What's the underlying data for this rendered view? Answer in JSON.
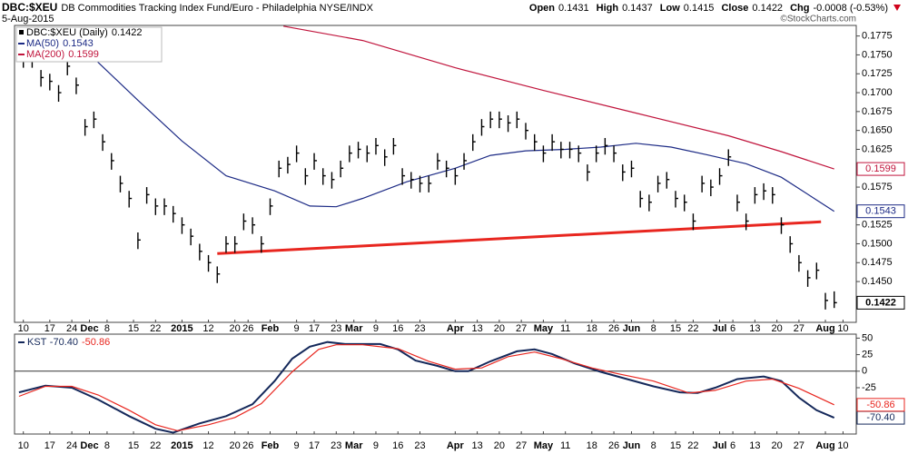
{
  "chart_data": {
    "type": "ohlc",
    "title": "DBC:$XEU",
    "subtitle": "DB Commodities Tracking Index Fund/Euro - Philadelphia NYSE/INDX",
    "date": "5-Aug-2015",
    "credit": "©StockCharts.com",
    "quote": [
      {
        "label": "Open",
        "value": 0.1431
      },
      {
        "label": "High",
        "value": 0.1437
      },
      {
        "label": "Low",
        "value": 0.1415
      },
      {
        "label": "Close",
        "value": 0.1422
      },
      {
        "label": "Chg",
        "value": -0.0008,
        "value_label": "-0.0008 (-0.53%)"
      }
    ],
    "quote_color": "#d0021b",
    "xlim": [
      -2,
      189
    ],
    "ylim": [
      0.1396,
      0.1789
    ],
    "yticks": [
      {
        "value": 0.145,
        "label": "0.1450"
      },
      0.1475,
      {
        "value": 0.15,
        "label": "0.1500"
      },
      0.1525,
      0.1575,
      0.1625,
      {
        "value": 0.165,
        "label": "0.1650"
      },
      0.1675,
      {
        "value": 0.17,
        "label": "0.1700"
      },
      0.1725,
      {
        "value": 0.175,
        "label": "0.1750"
      },
      0.1775
    ],
    "xticks": [
      {
        "value": 0,
        "label": "10"
      },
      {
        "value": 6,
        "label": "17"
      },
      {
        "value": 11,
        "label": "24"
      },
      {
        "value": 15,
        "label": "Dec"
      },
      {
        "value": 19,
        "label": "8"
      },
      {
        "value": 25,
        "label": "15"
      },
      {
        "value": 30,
        "label": "22"
      },
      {
        "value": 36,
        "label": "2015"
      },
      {
        "value": 42,
        "label": "12"
      },
      {
        "value": 48,
        "label": "20"
      },
      {
        "value": 51,
        "label": "26"
      },
      {
        "value": 56,
        "label": "Feb"
      },
      {
        "value": 62,
        "label": "9"
      },
      {
        "value": 66,
        "label": "17"
      },
      {
        "value": 71,
        "label": "23"
      },
      {
        "value": 75,
        "label": "Mar"
      },
      {
        "value": 80,
        "label": "9"
      },
      {
        "value": 85,
        "label": "16"
      },
      {
        "value": 90,
        "label": "23"
      },
      {
        "value": 98,
        "label": "Apr"
      },
      {
        "value": 103,
        "label": "13"
      },
      {
        "value": 108,
        "label": "20"
      },
      {
        "value": 113,
        "label": "27"
      },
      {
        "value": 118,
        "label": "May"
      },
      {
        "value": 123,
        "label": "11"
      },
      {
        "value": 129,
        "label": "18"
      },
      {
        "value": 134,
        "label": "26"
      },
      {
        "value": 138,
        "label": "Jun"
      },
      {
        "value": 143,
        "label": "8"
      },
      {
        "value": 148,
        "label": "15"
      },
      {
        "value": 152,
        "label": "22"
      },
      {
        "value": 158,
        "label": "Jul"
      },
      {
        "value": 161,
        "label": "6"
      },
      {
        "value": 166,
        "label": "13"
      },
      {
        "value": 171,
        "label": "20"
      },
      {
        "value": 176,
        "label": "27"
      },
      {
        "value": 182,
        "label": "Aug"
      },
      {
        "value": 186,
        "label": "10"
      }
    ],
    "price": {
      "name": "DBC:$XEU (Daily)",
      "color": "#000000",
      "x": [
        0,
        2,
        4,
        6,
        8,
        10,
        12,
        14,
        16,
        18,
        20,
        22,
        24,
        26,
        28,
        30,
        32,
        34,
        36,
        38,
        40,
        42,
        44,
        46,
        48,
        50,
        52,
        54,
        56,
        58,
        60,
        62,
        64,
        66,
        68,
        70,
        72,
        74,
        76,
        78,
        80,
        82,
        84,
        86,
        88,
        90,
        92,
        94,
        96,
        98,
        100,
        102,
        104,
        106,
        108,
        110,
        112,
        114,
        116,
        118,
        120,
        122,
        124,
        126,
        128,
        130,
        132,
        134,
        136,
        138,
        140,
        142,
        144,
        146,
        148,
        150,
        152,
        154,
        156,
        158,
        160,
        162,
        164,
        166,
        168,
        170,
        172,
        174,
        176,
        178,
        180,
        182,
        184
      ],
      "high": [
        0.1755,
        0.1755,
        0.173,
        0.1725,
        0.171,
        0.1745,
        0.172,
        0.1665,
        0.1675,
        0.1645,
        0.162,
        0.159,
        0.157,
        0.1515,
        0.1575,
        0.156,
        0.156,
        0.155,
        0.1535,
        0.152,
        0.15,
        0.1485,
        0.147,
        0.151,
        0.151,
        0.154,
        0.1535,
        0.151,
        0.156,
        0.161,
        0.1615,
        0.163,
        0.16,
        0.162,
        0.16,
        0.1595,
        0.161,
        0.163,
        0.1635,
        0.163,
        0.164,
        0.1625,
        0.164,
        0.16,
        0.1595,
        0.159,
        0.159,
        0.162,
        0.161,
        0.16,
        0.162,
        0.1645,
        0.1665,
        0.1675,
        0.1675,
        0.167,
        0.1675,
        0.166,
        0.1645,
        0.163,
        0.1645,
        0.1635,
        0.1635,
        0.163,
        0.1605,
        0.163,
        0.164,
        0.163,
        0.1605,
        0.161,
        0.157,
        0.1565,
        0.159,
        0.1595,
        0.157,
        0.1565,
        0.154,
        0.159,
        0.1585,
        0.16,
        0.1625,
        0.1565,
        0.154,
        0.1575,
        0.158,
        0.1575,
        0.1535,
        0.151,
        0.1485,
        0.1465,
        0.1475,
        0.1435,
        0.1437
      ],
      "low": [
        0.1733,
        0.1733,
        0.1708,
        0.1703,
        0.1688,
        0.1723,
        0.1698,
        0.1643,
        0.1653,
        0.1623,
        0.1598,
        0.1568,
        0.1548,
        0.1493,
        0.1553,
        0.1538,
        0.1538,
        0.1528,
        0.1513,
        0.1498,
        0.1478,
        0.1463,
        0.1448,
        0.1488,
        0.1488,
        0.1518,
        0.1513,
        0.1488,
        0.1538,
        0.1588,
        0.1593,
        0.1608,
        0.1578,
        0.1598,
        0.1578,
        0.1573,
        0.1588,
        0.1608,
        0.1613,
        0.1608,
        0.1618,
        0.1603,
        0.1618,
        0.1578,
        0.1573,
        0.1568,
        0.1568,
        0.1598,
        0.1588,
        0.1578,
        0.1598,
        0.1623,
        0.1643,
        0.1653,
        0.1653,
        0.1648,
        0.1653,
        0.1638,
        0.1623,
        0.1608,
        0.1623,
        0.1613,
        0.1613,
        0.1608,
        0.1583,
        0.1608,
        0.1618,
        0.1608,
        0.1583,
        0.1588,
        0.1548,
        0.1543,
        0.1568,
        0.1573,
        0.1548,
        0.1543,
        0.1518,
        0.1568,
        0.1563,
        0.1578,
        0.1603,
        0.1543,
        0.1518,
        0.1553,
        0.1558,
        0.1553,
        0.1513,
        0.1488,
        0.1463,
        0.1443,
        0.1453,
        0.1413,
        0.1415
      ],
      "close": [
        0.1745,
        0.1745,
        0.172,
        0.1715,
        0.17,
        0.1735,
        0.171,
        0.1655,
        0.1665,
        0.1635,
        0.161,
        0.158,
        0.156,
        0.1505,
        0.1565,
        0.155,
        0.155,
        0.154,
        0.1525,
        0.151,
        0.149,
        0.1475,
        0.146,
        0.15,
        0.15,
        0.153,
        0.1525,
        0.15,
        0.155,
        0.16,
        0.1605,
        0.162,
        0.159,
        0.161,
        0.159,
        0.1585,
        0.16,
        0.162,
        0.1625,
        0.162,
        0.163,
        0.1615,
        0.163,
        0.159,
        0.1585,
        0.158,
        0.158,
        0.161,
        0.16,
        0.159,
        0.161,
        0.1635,
        0.1655,
        0.1665,
        0.1665,
        0.166,
        0.1665,
        0.165,
        0.1635,
        0.162,
        0.1635,
        0.1625,
        0.1625,
        0.162,
        0.1595,
        0.162,
        0.163,
        0.162,
        0.1595,
        0.16,
        0.156,
        0.1555,
        0.158,
        0.1585,
        0.156,
        0.1555,
        0.153,
        0.158,
        0.1575,
        0.159,
        0.1615,
        0.1555,
        0.153,
        0.1565,
        0.157,
        0.1565,
        0.1525,
        0.15,
        0.1475,
        0.1455,
        0.1465,
        0.1425,
        0.1422
      ]
    },
    "series": [
      {
        "name": "MA(50)",
        "color": "#1c2a85",
        "x": [
          0,
          15,
          26,
          36,
          46,
          57,
          65,
          71,
          77,
          87,
          98,
          106,
          114,
          123,
          131,
          139,
          147,
          155,
          164,
          172,
          180,
          184
        ],
        "values": [
          0.1772,
          0.1751,
          0.169,
          0.1636,
          0.159,
          0.157,
          0.155,
          0.1549,
          0.156,
          0.1582,
          0.16,
          0.1617,
          0.1623,
          0.1625,
          0.1628,
          0.1633,
          0.1628,
          0.1618,
          0.1606,
          0.1588,
          0.1558,
          0.1543
        ]
      },
      {
        "name": "MA(200)",
        "color": "#c0143c",
        "x": [
          59,
          77,
          98,
          118,
          139,
          160,
          172,
          184
        ],
        "values": [
          0.1788,
          0.1769,
          0.1733,
          0.1703,
          0.1673,
          0.1643,
          0.1622,
          0.1599
        ]
      }
    ],
    "trendline": {
      "color": "#e8261f",
      "x": [
        44,
        181
      ],
      "values": [
        0.1487,
        0.1529
      ]
    },
    "indicator": {
      "type": "line",
      "ylim": [
        -95,
        56
      ],
      "yticks": [
        50,
        25,
        0,
        -25
      ],
      "zero_line": true,
      "series": [
        {
          "name": "KST",
          "color": "#14285a",
          "last_label": "-70.40",
          "x": [
            -1,
            5,
            11,
            17,
            24,
            30,
            34,
            40,
            46,
            52,
            57,
            61,
            65,
            69,
            73,
            81,
            85,
            89,
            94,
            98,
            101,
            106,
            112,
            116,
            120,
            125,
            131,
            137,
            143,
            149,
            153,
            157,
            162,
            168,
            172,
            176,
            180,
            184
          ],
          "values": [
            -32,
            -22,
            -25,
            -43,
            -68,
            -87,
            -93,
            -79,
            -68,
            -50,
            -15,
            19,
            37,
            44,
            41,
            41,
            33,
            16,
            8,
            0,
            0,
            15,
            30,
            33,
            26,
            12,
            -1,
            -12,
            -23,
            -32,
            -33,
            -25,
            -12,
            -8,
            -15,
            -40,
            -59,
            -70.4
          ]
        },
        {
          "color": "#e8261f",
          "x": [
            -1,
            5,
            11,
            17,
            24,
            30,
            35,
            42,
            48,
            54,
            61,
            67,
            71,
            77,
            85,
            92,
            98,
            104,
            110,
            116,
            122,
            129,
            135,
            143,
            151,
            157,
            164,
            170,
            176,
            184
          ],
          "values": [
            -38,
            -23,
            -23,
            -36,
            -59,
            -81,
            -90,
            -81,
            -70,
            -49,
            -1,
            33,
            40,
            40,
            34,
            15,
            3,
            5,
            22,
            29,
            19,
            5,
            -4,
            -15,
            -33,
            -29,
            -15,
            -12,
            -26,
            -50.86
          ]
        }
      ]
    }
  }
}
